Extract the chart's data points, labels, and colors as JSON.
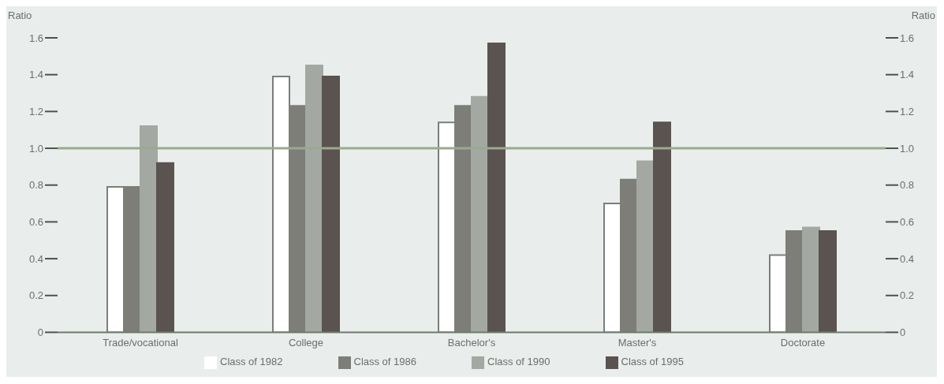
{
  "chart_data": {
    "type": "bar",
    "ylabel": "Ratio",
    "y2label": "Ratio",
    "categories": [
      "Trade/vocational",
      "College",
      "Bachelor's",
      "Master's",
      "Doctorate"
    ],
    "series": [
      {
        "name": "Class of 1982",
        "color": "#ffffff",
        "values": [
          0.79,
          1.39,
          1.14,
          0.7,
          0.42
        ]
      },
      {
        "name": "Class of 1986",
        "color": "#7d7e78",
        "values": [
          0.79,
          1.23,
          1.23,
          0.83,
          0.55
        ]
      },
      {
        "name": "Class of 1990",
        "color": "#a3a8a2",
        "values": [
          1.12,
          1.45,
          1.28,
          0.93,
          0.57
        ]
      },
      {
        "name": "Class of 1995",
        "color": "#5a5350",
        "values": [
          0.92,
          1.39,
          1.57,
          1.14,
          0.55
        ]
      }
    ],
    "ylim": [
      0,
      1.6
    ],
    "yticks": [
      0,
      0.2,
      0.4,
      0.6,
      0.8,
      {
        "value": 1,
        "label": "1.0"
      },
      1.2,
      1.4,
      1.6
    ],
    "y2lim": [
      0,
      1.6
    ],
    "y2ticks": [
      0,
      0.2,
      0.4,
      0.6,
      0.8,
      {
        "value": 1,
        "label": "1.0"
      },
      1.2,
      1.4,
      1.6
    ],
    "ref_lines": [
      {
        "axis": "y",
        "value": 1.0,
        "color": "#9aaa8e"
      }
    ],
    "grid": false,
    "legend": "bottom"
  }
}
